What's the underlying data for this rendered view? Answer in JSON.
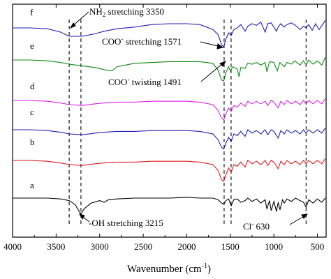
{
  "chart_data": {
    "type": "line",
    "title": "",
    "xlabel": "Wavenumber (cm",
    "xlabel_superscript": "-1",
    "xlabel_suffix": ")",
    "ylabel": "",
    "x_reversed": true,
    "xlim": [
      4000,
      400
    ],
    "xticks": [
      4000,
      3500,
      3000,
      2500,
      2000,
      1500,
      1000,
      500
    ],
    "y_ticks_shown": false,
    "grid": false,
    "legend": "none",
    "series": [
      {
        "name": "f",
        "color": "#1f1fb4",
        "offset": 6,
        "points": [
          [
            4000,
            0.0
          ],
          [
            3800,
            0.0
          ],
          [
            3600,
            -0.1
          ],
          [
            3450,
            -0.5
          ],
          [
            3350,
            -1.0
          ],
          [
            3200,
            -1.0
          ],
          [
            3050,
            -0.7
          ],
          [
            2950,
            -0.4
          ],
          [
            2800,
            -0.1
          ],
          [
            2600,
            0.1
          ],
          [
            2400,
            0.4
          ],
          [
            2200,
            0.5
          ],
          [
            2000,
            0.5
          ],
          [
            1850,
            0.4
          ],
          [
            1700,
            -0.2
          ],
          [
            1640,
            -0.8
          ],
          [
            1600,
            -2.0
          ],
          [
            1575,
            -2.3
          ],
          [
            1550,
            -1.3
          ],
          [
            1520,
            -0.6
          ],
          [
            1490,
            -0.9
          ],
          [
            1460,
            -0.2
          ],
          [
            1420,
            0.0
          ],
          [
            1380,
            0.4
          ],
          [
            1330,
            -0.4
          ],
          [
            1300,
            0.2
          ],
          [
            1250,
            0.5
          ],
          [
            1200,
            0.3
          ],
          [
            1150,
            0.7
          ],
          [
            1100,
            -0.5
          ],
          [
            1070,
            0.5
          ],
          [
            1030,
            0.6
          ],
          [
            1000,
            0.1
          ],
          [
            970,
            -0.4
          ],
          [
            950,
            0.1
          ],
          [
            920,
            0.5
          ],
          [
            880,
            0.1
          ],
          [
            850,
            0.4
          ],
          [
            800,
            0.6
          ],
          [
            750,
            0.3
          ],
          [
            700,
            -0.2
          ],
          [
            660,
            0.2
          ],
          [
            630,
            0.0
          ],
          [
            600,
            0.4
          ],
          [
            560,
            -0.3
          ],
          [
            520,
            0.5
          ],
          [
            480,
            -0.2
          ],
          [
            440,
            0.4
          ],
          [
            410,
            0.9
          ]
        ]
      },
      {
        "name": "e",
        "color": "#0c8a0c",
        "offset": 5,
        "points": [
          [
            4000,
            0.0
          ],
          [
            3800,
            0.0
          ],
          [
            3600,
            -0.1
          ],
          [
            3450,
            -0.3
          ],
          [
            3350,
            -0.5
          ],
          [
            3200,
            -0.7
          ],
          [
            3050,
            -0.9
          ],
          [
            2930,
            -1.2
          ],
          [
            2860,
            -1.3
          ],
          [
            2800,
            -0.8
          ],
          [
            2600,
            -0.4
          ],
          [
            2400,
            -0.3
          ],
          [
            2200,
            -0.2
          ],
          [
            2000,
            -0.2
          ],
          [
            1850,
            -0.2
          ],
          [
            1700,
            -0.4
          ],
          [
            1640,
            -1.2
          ],
          [
            1600,
            -2.4
          ],
          [
            1575,
            -2.5
          ],
          [
            1550,
            -1.5
          ],
          [
            1520,
            -0.8
          ],
          [
            1500,
            -1.3
          ],
          [
            1470,
            -0.8
          ],
          [
            1420,
            -1.1
          ],
          [
            1400,
            -2.0
          ],
          [
            1380,
            -0.9
          ],
          [
            1330,
            -1.0
          ],
          [
            1300,
            -0.4
          ],
          [
            1250,
            -0.5
          ],
          [
            1200,
            -0.3
          ],
          [
            1150,
            -0.6
          ],
          [
            1100,
            -0.3
          ],
          [
            1080,
            -1.4
          ],
          [
            1050,
            -0.2
          ],
          [
            1000,
            -0.3
          ],
          [
            960,
            -1.3
          ],
          [
            930,
            -0.3
          ],
          [
            880,
            -0.8
          ],
          [
            850,
            -0.3
          ],
          [
            800,
            -0.5
          ],
          [
            760,
            -0.1
          ],
          [
            700,
            -0.6
          ],
          [
            660,
            -0.1
          ],
          [
            630,
            -0.6
          ],
          [
            600,
            0.0
          ],
          [
            550,
            -0.5
          ],
          [
            500,
            -0.1
          ],
          [
            450,
            -0.6
          ],
          [
            410,
            0.3
          ]
        ]
      },
      {
        "name": "d",
        "color": "#e020e0",
        "offset": 4,
        "points": [
          [
            4000,
            0.0
          ],
          [
            3800,
            0.0
          ],
          [
            3600,
            -0.1
          ],
          [
            3450,
            -0.3
          ],
          [
            3350,
            -0.5
          ],
          [
            3200,
            -0.6
          ],
          [
            3050,
            -0.4
          ],
          [
            2950,
            -0.3
          ],
          [
            2800,
            -0.2
          ],
          [
            2600,
            -0.2
          ],
          [
            2400,
            -0.1
          ],
          [
            2200,
            -0.1
          ],
          [
            2000,
            -0.1
          ],
          [
            1850,
            -0.2
          ],
          [
            1700,
            -0.5
          ],
          [
            1640,
            -1.2
          ],
          [
            1600,
            -2.1
          ],
          [
            1575,
            -2.3
          ],
          [
            1550,
            -1.6
          ],
          [
            1520,
            -0.9
          ],
          [
            1490,
            -1.3
          ],
          [
            1460,
            -0.6
          ],
          [
            1420,
            -0.8
          ],
          [
            1380,
            -0.3
          ],
          [
            1330,
            -0.7
          ],
          [
            1300,
            -0.1
          ],
          [
            1250,
            -0.4
          ],
          [
            1200,
            -0.1
          ],
          [
            1150,
            -0.4
          ],
          [
            1100,
            -0.1
          ],
          [
            1070,
            -0.6
          ],
          [
            1030,
            0.0
          ],
          [
            1000,
            -0.2
          ],
          [
            950,
            -0.9
          ],
          [
            920,
            -0.1
          ],
          [
            880,
            -0.5
          ],
          [
            850,
            0.0
          ],
          [
            800,
            -0.4
          ],
          [
            750,
            -0.1
          ],
          [
            700,
            -0.5
          ],
          [
            660,
            0.0
          ],
          [
            630,
            -0.4
          ],
          [
            600,
            0.0
          ],
          [
            550,
            -0.4
          ],
          [
            500,
            0.0
          ],
          [
            450,
            -0.4
          ],
          [
            410,
            0.2
          ]
        ]
      },
      {
        "name": "c",
        "color": "#1f1fb4",
        "offset": 3,
        "points": [
          [
            4000,
            0.0
          ],
          [
            3800,
            0.0
          ],
          [
            3600,
            -0.1
          ],
          [
            3450,
            -0.3
          ],
          [
            3350,
            -0.5
          ],
          [
            3200,
            -0.6
          ],
          [
            3050,
            -0.4
          ],
          [
            2950,
            -0.3
          ],
          [
            2800,
            -0.2
          ],
          [
            2600,
            -0.2
          ],
          [
            2400,
            -0.1
          ],
          [
            2200,
            -0.1
          ],
          [
            2000,
            -0.1
          ],
          [
            1850,
            -0.2
          ],
          [
            1700,
            -0.5
          ],
          [
            1640,
            -1.2
          ],
          [
            1600,
            -2.1
          ],
          [
            1575,
            -2.3
          ],
          [
            1550,
            -1.6
          ],
          [
            1520,
            -0.9
          ],
          [
            1490,
            -1.4
          ],
          [
            1460,
            -0.5
          ],
          [
            1420,
            -0.7
          ],
          [
            1380,
            -0.2
          ],
          [
            1330,
            -0.8
          ],
          [
            1300,
            0.0
          ],
          [
            1250,
            -0.4
          ],
          [
            1200,
            -0.1
          ],
          [
            1150,
            -0.5
          ],
          [
            1100,
            0.0
          ],
          [
            1070,
            -0.6
          ],
          [
            1030,
            0.0
          ],
          [
            1000,
            -0.2
          ],
          [
            950,
            -1.0
          ],
          [
            920,
            -0.1
          ],
          [
            880,
            -0.5
          ],
          [
            850,
            0.0
          ],
          [
            800,
            -0.4
          ],
          [
            750,
            -0.1
          ],
          [
            700,
            -0.5
          ],
          [
            660,
            0.0
          ],
          [
            630,
            -0.4
          ],
          [
            600,
            0.0
          ],
          [
            550,
            -0.4
          ],
          [
            500,
            0.0
          ],
          [
            450,
            -0.4
          ],
          [
            410,
            0.2
          ]
        ]
      },
      {
        "name": "b",
        "color": "#e01b1b",
        "offset": 2,
        "points": [
          [
            4000,
            0.0
          ],
          [
            3800,
            0.0
          ],
          [
            3600,
            -0.1
          ],
          [
            3450,
            -0.3
          ],
          [
            3350,
            -0.5
          ],
          [
            3200,
            -0.6
          ],
          [
            3050,
            -0.4
          ],
          [
            2950,
            -0.3
          ],
          [
            2800,
            -0.2
          ],
          [
            2600,
            -0.2
          ],
          [
            2400,
            -0.1
          ],
          [
            2200,
            -0.1
          ],
          [
            2000,
            -0.1
          ],
          [
            1850,
            -0.2
          ],
          [
            1700,
            -0.5
          ],
          [
            1640,
            -1.2
          ],
          [
            1600,
            -2.3
          ],
          [
            1575,
            -2.5
          ],
          [
            1550,
            -1.7
          ],
          [
            1520,
            -0.9
          ],
          [
            1490,
            -1.4
          ],
          [
            1460,
            -0.5
          ],
          [
            1420,
            -0.7
          ],
          [
            1380,
            -0.2
          ],
          [
            1330,
            -0.8
          ],
          [
            1300,
            0.0
          ],
          [
            1250,
            -0.4
          ],
          [
            1200,
            -0.1
          ],
          [
            1150,
            -0.5
          ],
          [
            1100,
            0.0
          ],
          [
            1070,
            -0.6
          ],
          [
            1030,
            0.0
          ],
          [
            1000,
            -0.2
          ],
          [
            950,
            -1.0
          ],
          [
            920,
            -0.1
          ],
          [
            880,
            -0.5
          ],
          [
            850,
            0.0
          ],
          [
            800,
            -0.4
          ],
          [
            750,
            -0.1
          ],
          [
            700,
            -0.5
          ],
          [
            660,
            0.0
          ],
          [
            630,
            -0.4
          ],
          [
            600,
            0.0
          ],
          [
            550,
            -0.4
          ],
          [
            500,
            0.0
          ],
          [
            450,
            -0.4
          ],
          [
            410,
            0.2
          ]
        ]
      },
      {
        "name": "a",
        "color": "#000000",
        "offset": 1,
        "points": [
          [
            4000,
            0.0
          ],
          [
            3800,
            0.0
          ],
          [
            3600,
            0.0
          ],
          [
            3450,
            -0.1
          ],
          [
            3350,
            -0.3
          ],
          [
            3280,
            -0.8
          ],
          [
            3240,
            -1.5
          ],
          [
            3215,
            -1.9
          ],
          [
            3180,
            -1.3
          ],
          [
            3100,
            -0.6
          ],
          [
            3000,
            -0.3
          ],
          [
            2950,
            -0.5
          ],
          [
            2900,
            -0.2
          ],
          [
            2800,
            -0.1
          ],
          [
            2600,
            0.0
          ],
          [
            2400,
            0.0
          ],
          [
            2200,
            0.0
          ],
          [
            2000,
            0.1
          ],
          [
            1850,
            0.0
          ],
          [
            1700,
            0.0
          ],
          [
            1640,
            -0.2
          ],
          [
            1600,
            -0.6
          ],
          [
            1575,
            -0.7
          ],
          [
            1550,
            -0.3
          ],
          [
            1520,
            -0.1
          ],
          [
            1490,
            -0.9
          ],
          [
            1460,
            -0.2
          ],
          [
            1420,
            -0.1
          ],
          [
            1380,
            -0.5
          ],
          [
            1330,
            -0.3
          ],
          [
            1300,
            0.0
          ],
          [
            1250,
            -0.4
          ],
          [
            1200,
            -0.1
          ],
          [
            1150,
            -0.6
          ],
          [
            1100,
            -0.2
          ],
          [
            1080,
            -1.3
          ],
          [
            1050,
            -0.3
          ],
          [
            1030,
            -1.5
          ],
          [
            1000,
            -0.4
          ],
          [
            970,
            -1.6
          ],
          [
            950,
            -0.5
          ],
          [
            930,
            -1.4
          ],
          [
            900,
            -0.2
          ],
          [
            880,
            -0.6
          ],
          [
            850,
            -0.1
          ],
          [
            800,
            -0.4
          ],
          [
            750,
            0.0
          ],
          [
            700,
            -0.3
          ],
          [
            660,
            -0.5
          ],
          [
            630,
            -1.1
          ],
          [
            600,
            -0.2
          ],
          [
            550,
            -0.6
          ],
          [
            500,
            -0.1
          ],
          [
            450,
            -0.5
          ],
          [
            410,
            0.0
          ]
        ]
      }
    ],
    "curve_labels": [
      "f",
      "e",
      "d",
      "c",
      "b",
      "a"
    ],
    "reference_lines_x": [
      3350,
      3215,
      1571,
      1491,
      630
    ],
    "annotations": {
      "nh2_main": "NH",
      "nh2_sub": "2",
      "nh2_rest": " stretching 3350",
      "coo_main": "COO",
      "coo_sup": "-",
      "coo_rest": " stretching 1571",
      "coot_main": "COO",
      "coot_sup": "-",
      "coot_rest": " twisting  1491",
      "oh_text": "-OH stretching 3215",
      "cl_main": "Cl",
      "cl_sup": "-",
      "cl_rest": "  630"
    }
  }
}
